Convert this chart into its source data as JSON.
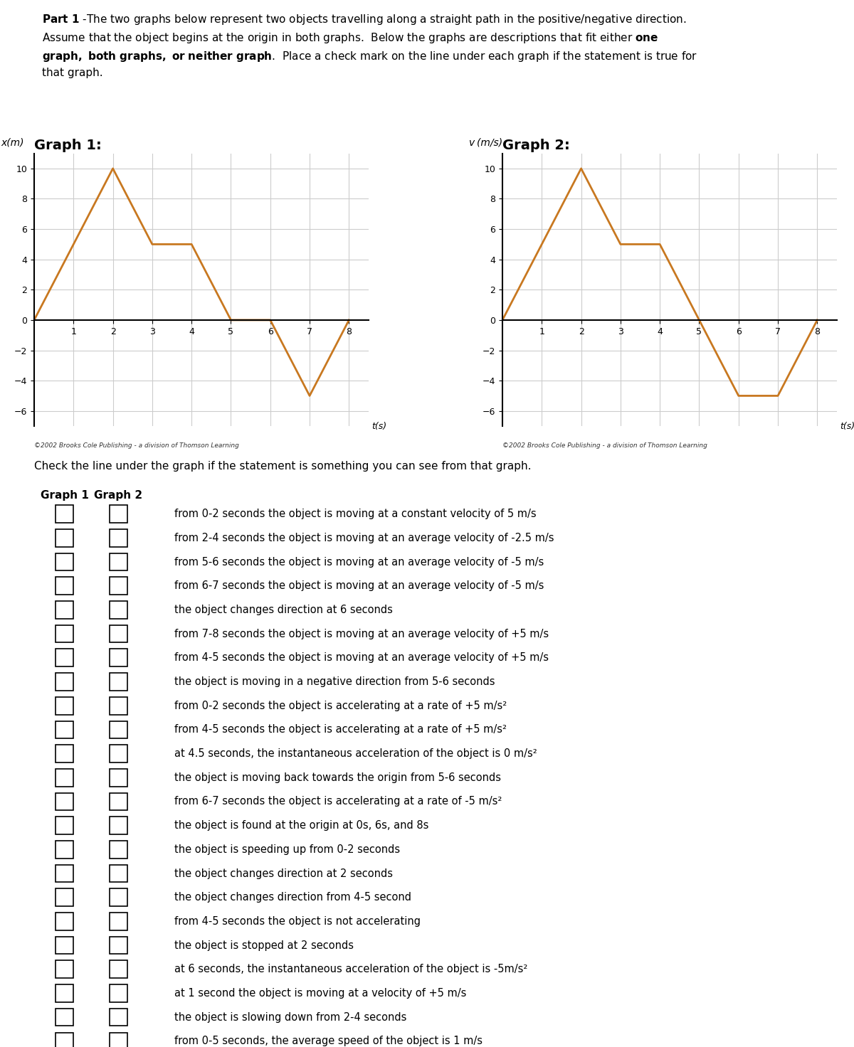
{
  "graph1_title": "Graph 1:",
  "graph2_title": "Graph 2:",
  "graph1_ylabel": "x(m)",
  "graph2_ylabel": "v (m/s)",
  "xlabel": "t(s)",
  "graph1_x": [
    0,
    2,
    3,
    4,
    5,
    6,
    7,
    8
  ],
  "graph1_y": [
    0,
    10,
    5,
    5,
    0,
    0,
    -5,
    0
  ],
  "graph2_x": [
    0,
    2,
    3,
    4,
    5,
    6,
    7,
    8
  ],
  "graph2_y": [
    0,
    10,
    5,
    5,
    0,
    -5,
    -5,
    0
  ],
  "line_color": "#C87820",
  "line_width": 2.0,
  "xlim_max": 8.5,
  "ylim": [
    -7,
    11
  ],
  "xticks": [
    1,
    2,
    3,
    4,
    5,
    6,
    7,
    8
  ],
  "yticks": [
    -6,
    -4,
    -2,
    0,
    2,
    4,
    6,
    8,
    10
  ],
  "grid_color": "#CCCCCC",
  "copyright": "©2002 Brooks Cole Publishing - a division of Thomson Learning",
  "check_label": "Check the line under the graph if the statement is something you can see from that graph.",
  "col1_header": "Graph 1",
  "col2_header": "Graph 2",
  "statements": [
    "from 0-2 seconds the object is moving at a constant velocity of 5 m/s",
    "from 2-4 seconds the object is moving at an average velocity of -2.5 m/s",
    "from 5-6 seconds the object is moving at an average velocity of -5 m/s",
    "from 6-7 seconds the object is moving at an average velocity of -5 m/s",
    "the object changes direction at 6 seconds",
    "from 7-8 seconds the object is moving at an average velocity of +5 m/s",
    "from 4-5 seconds the object is moving at an average velocity of +5 m/s",
    "the object is moving in a negative direction from 5-6 seconds",
    "from 0-2 seconds the object is accelerating at a rate of +5 m/s²",
    "from 4-5 seconds the object is accelerating at a rate of +5 m/s²",
    "at 4.5 seconds, the instantaneous acceleration of the object is 0 m/s²",
    "the object is moving back towards the origin from 5-6 seconds",
    "from 6-7 seconds the object is accelerating at a rate of -5 m/s²",
    "the object is found at the origin at 0s, 6s, and 8s",
    "the object is speeding up from 0-2 seconds",
    "the object changes direction at 2 seconds",
    "the object changes direction from 4-5 second",
    "from 4-5 seconds the object is not accelerating",
    "the object is stopped at 2 seconds",
    "at 6 seconds, the instantaneous acceleration of the object is -5m/s²",
    "at 1 second the object is moving at a velocity of +5 m/s",
    "the object is slowing down from 2-4 seconds",
    "from 0-5 seconds, the average speed of the object is 1 m/s"
  ]
}
